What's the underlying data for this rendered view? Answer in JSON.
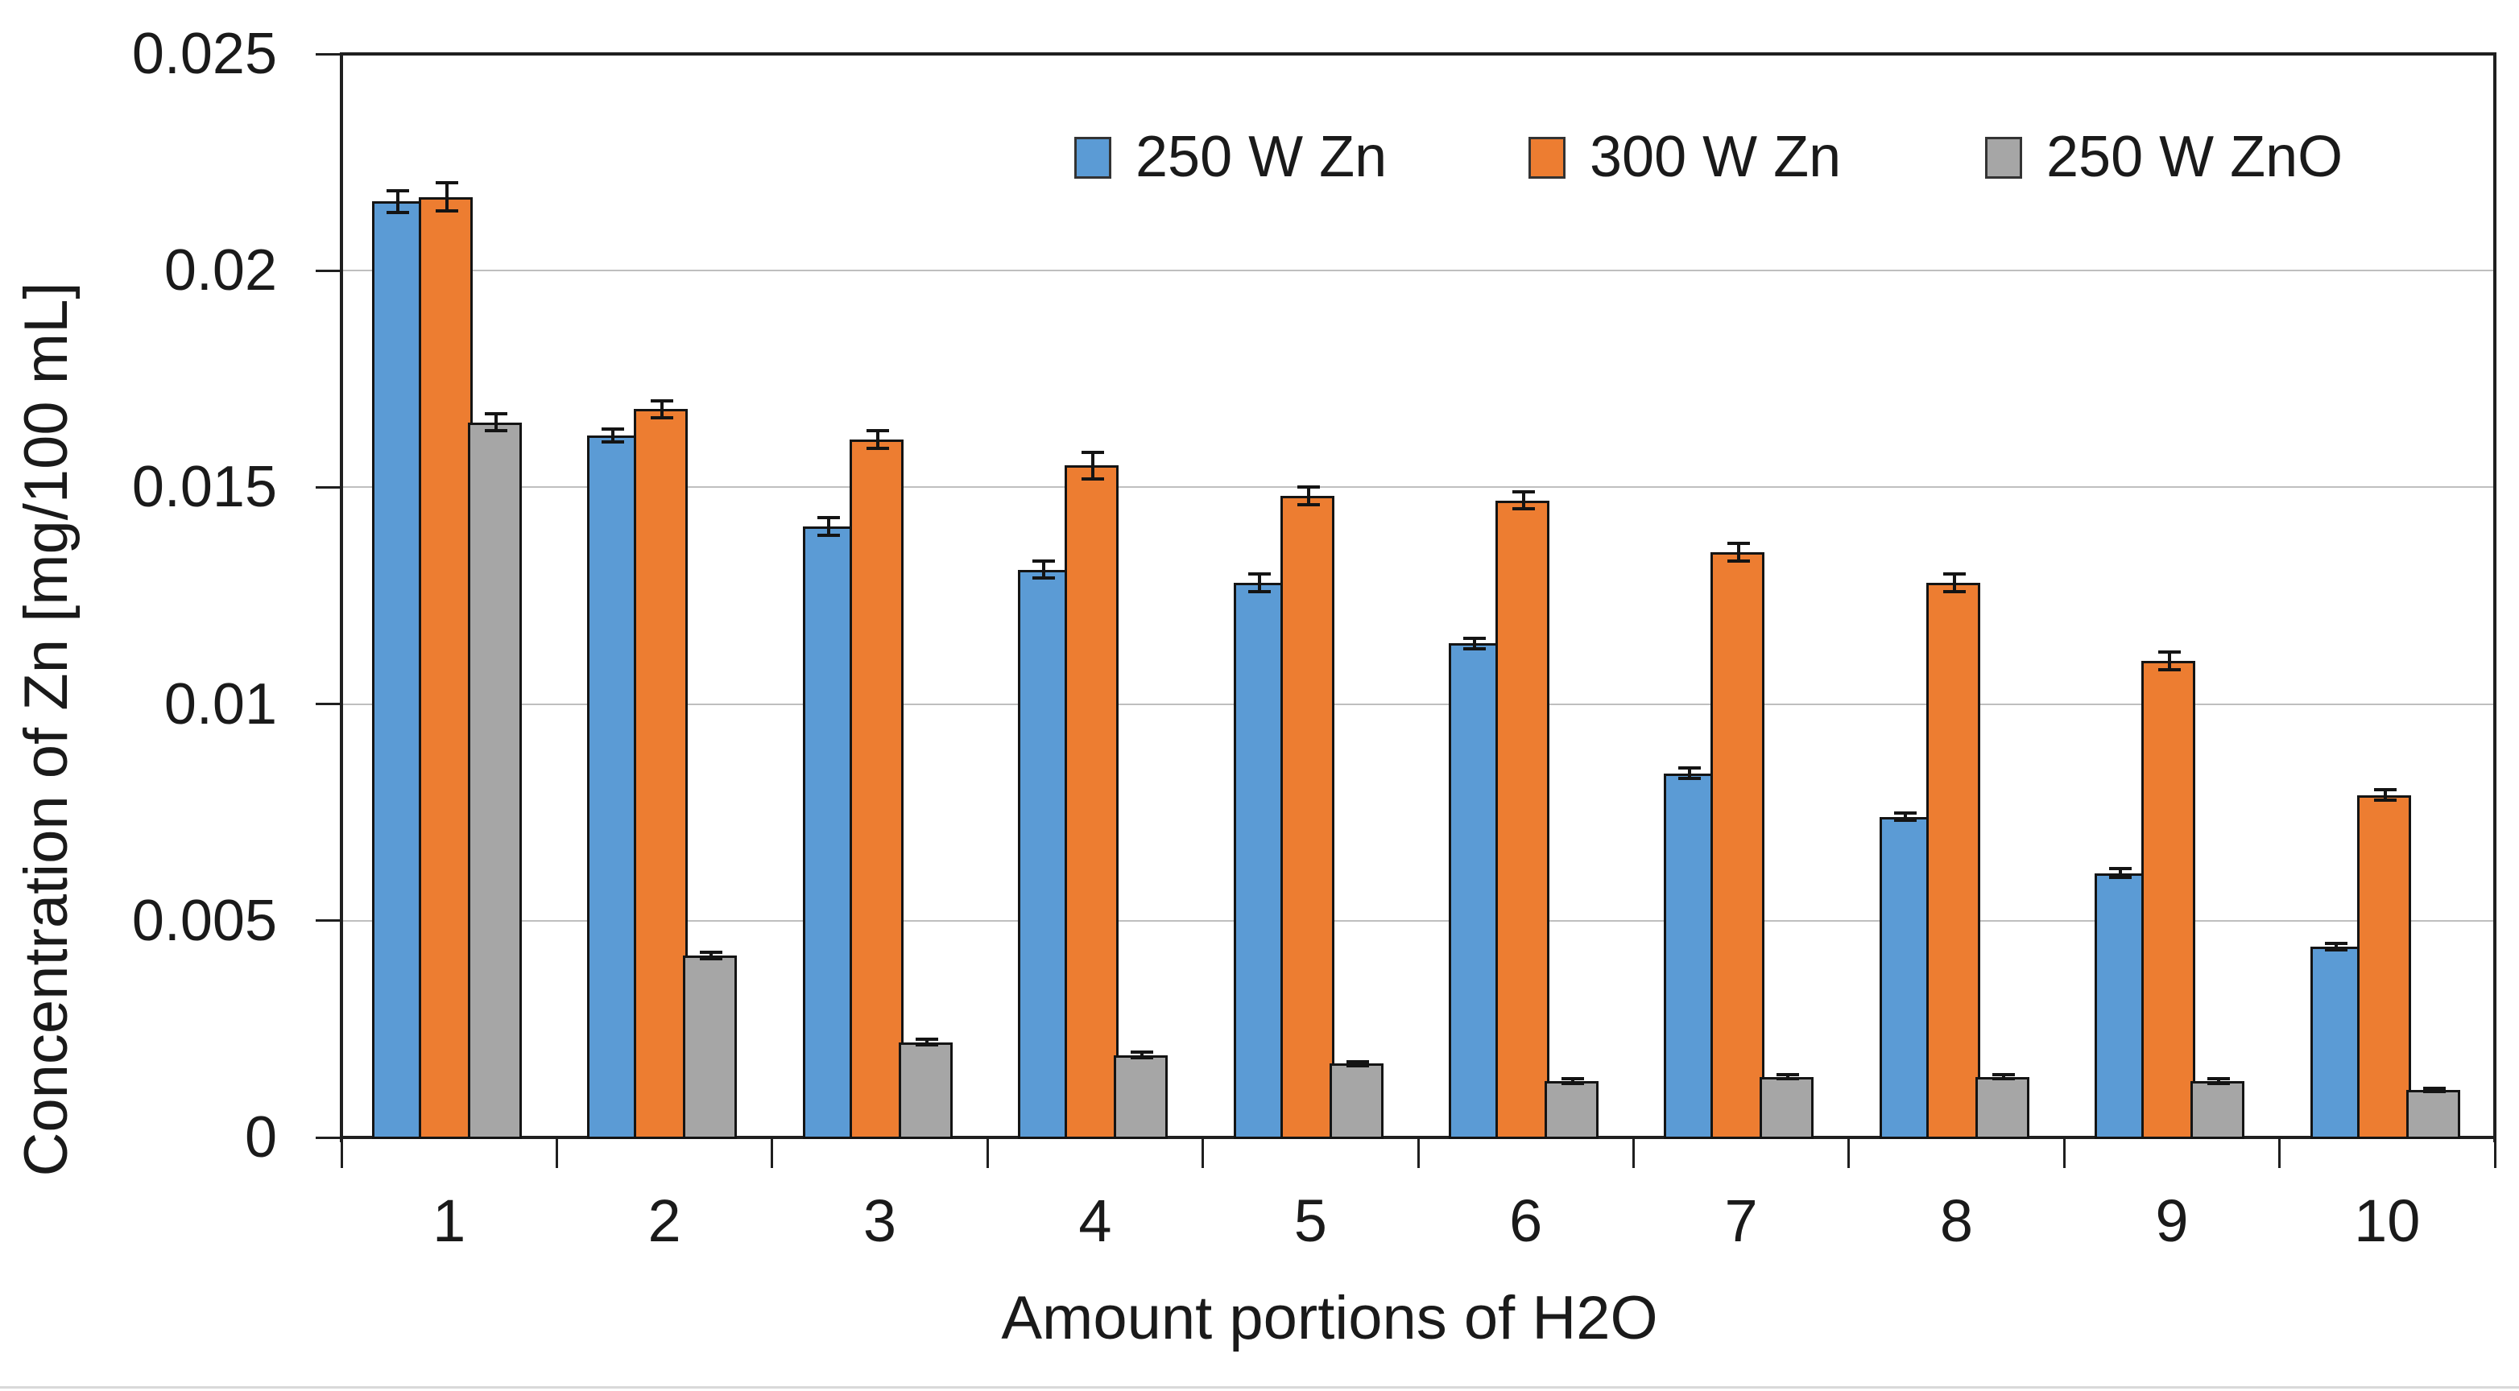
{
  "chart_data": {
    "type": "bar",
    "title": "",
    "xlabel": "Amount portions of H2O",
    "ylabel": "Concentration of Zn [mg/100 mL]",
    "categories": [
      "1",
      "2",
      "3",
      "4",
      "5",
      "6",
      "7",
      "8",
      "9",
      "10"
    ],
    "series": [
      {
        "name": "250 W Zn",
        "color": "#5B9BD5",
        "values": [
          0.0216,
          0.0162,
          0.0141,
          0.0131,
          0.0128,
          0.0114,
          0.0084,
          0.0074,
          0.0061,
          0.0044
        ],
        "errors": [
          0.00025,
          0.00015,
          0.0002,
          0.0002,
          0.0002,
          0.00012,
          0.00012,
          8e-05,
          0.0001,
          8e-05
        ]
      },
      {
        "name": "300 W Zn",
        "color": "#ED7D31",
        "values": [
          0.0217,
          0.0168,
          0.0161,
          0.0155,
          0.0148,
          0.0147,
          0.0135,
          0.0128,
          0.011,
          0.0079
        ],
        "errors": [
          0.00032,
          0.0002,
          0.0002,
          0.0003,
          0.0002,
          0.0002,
          0.0002,
          0.0002,
          0.0002,
          0.00012
        ]
      },
      {
        "name": "250 W ZnO",
        "color": "#A6A6A6",
        "values": [
          0.0165,
          0.0042,
          0.0022,
          0.0019,
          0.0017,
          0.0013,
          0.0014,
          0.0014,
          0.0013,
          0.0011
        ],
        "errors": [
          0.0002,
          8e-05,
          6e-05,
          6e-05,
          5e-05,
          5e-05,
          5e-05,
          4e-05,
          6e-05,
          4e-05
        ]
      }
    ],
    "ylim": [
      0,
      0.025
    ],
    "yticks": [
      0,
      0.005,
      0.01,
      0.015,
      0.02,
      0.025
    ],
    "ytick_labels": [
      "0",
      "0.005",
      "0.01",
      "0.015",
      "0.02",
      "0.025"
    ],
    "grid": true,
    "legend_position": "top-inside"
  },
  "colors": {
    "blue_series": "#5B9BD5",
    "orange_series": "#ED7D31",
    "gray_series": "#A6A6A6",
    "gridline": "#BFBFBF",
    "axis": "#1F1F1F",
    "background": "#FFFFFF"
  }
}
